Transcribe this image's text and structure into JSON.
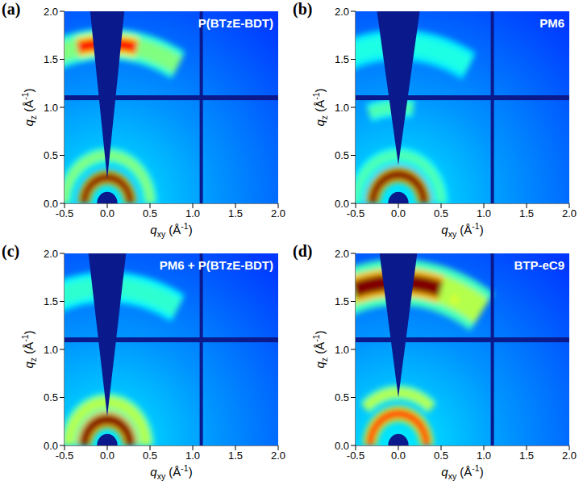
{
  "chart_data": [
    {
      "type": "heatmap",
      "panel_label": "(a)",
      "title": "P(BTzE-BDT)",
      "x_label": {
        "symbol": "q",
        "subscript": "xy",
        "unit_open": " (Å",
        "exponent": "-1",
        "unit_close": ")"
      },
      "y_label": {
        "symbol": "q",
        "subscript": "z",
        "unit_open": " (Å",
        "exponent": "-1",
        "unit_close": ")"
      },
      "xlim": [
        -0.5,
        2.0
      ],
      "ylim": [
        0,
        2.0
      ],
      "xticks": [
        -0.5,
        {
          "value": 0,
          "label": "0.0"
        },
        0.5,
        {
          "value": 1,
          "label": "1.0"
        },
        1.5,
        {
          "value": 2,
          "label": "2.0"
        }
      ],
      "yticks": [
        {
          "value": 0,
          "label": "0.0"
        },
        0.5,
        {
          "value": 1,
          "label": "1.0"
        },
        1.5,
        {
          "value": 2,
          "label": "2.0"
        }
      ],
      "beam_center": [
        0,
        0
      ],
      "beamstop_radius": 0.12,
      "missing_wedge": {
        "qz_apex": 0.25,
        "half_width_top": 0.2
      },
      "detector_gaps": {
        "qz": 1.1,
        "qxy": 1.1
      },
      "features": [
        {
          "shape": "arc",
          "q": 0.27,
          "width": 0.09,
          "angles": [
            0,
            180
          ],
          "intensity": 1.0
        },
        {
          "shape": "arc",
          "q": 0.5,
          "width": 0.1,
          "angles": [
            0,
            180
          ],
          "intensity": 0.5
        },
        {
          "shape": "arc",
          "q": 1.66,
          "width": 0.2,
          "angles": [
            60,
            120
          ],
          "intensity": 0.5
        },
        {
          "shape": "arc",
          "q": 1.66,
          "width": 0.14,
          "angles": [
            78,
            102
          ],
          "intensity": 0.85
        }
      ]
    },
    {
      "type": "heatmap",
      "panel_label": "(b)",
      "title": "PM6",
      "x_label": {
        "symbol": "q",
        "subscript": "xy",
        "unit_open": " (Å",
        "exponent": "-1",
        "unit_close": ")"
      },
      "y_label": {
        "symbol": "q",
        "subscript": "z",
        "unit_open": " (Å",
        "exponent": "-1",
        "unit_close": ")"
      },
      "xlim": [
        -0.5,
        2.0
      ],
      "ylim": [
        0,
        2.0
      ],
      "xticks": [
        -0.5,
        {
          "value": 0,
          "label": "0.0"
        },
        0.5,
        {
          "value": 1,
          "label": "1.0"
        },
        1.5,
        {
          "value": 2,
          "label": "2.0"
        }
      ],
      "yticks": [
        {
          "value": 0,
          "label": "0.0"
        },
        0.5,
        {
          "value": 1,
          "label": "1.0"
        },
        1.5,
        {
          "value": 2,
          "label": "2.0"
        }
      ],
      "beam_center": [
        0,
        0
      ],
      "beamstop_radius": 0.12,
      "missing_wedge": {
        "qz_apex": 0.4,
        "half_width_top": 0.25
      },
      "detector_gaps": {
        "qz": 1.1,
        "qxy": 1.1
      },
      "features": [
        {
          "shape": "arc",
          "q": 0.3,
          "width": 0.1,
          "angles": [
            0,
            180
          ],
          "intensity": 1.0
        },
        {
          "shape": "arc",
          "q": 0.5,
          "width": 0.1,
          "angles": [
            0,
            180
          ],
          "intensity": 0.45
        },
        {
          "shape": "arc",
          "q": 1.0,
          "width": 0.12,
          "angles": [
            80,
            110
          ],
          "intensity": 0.45
        },
        {
          "shape": "arc",
          "q": 1.65,
          "width": 0.2,
          "angles": [
            60,
            130
          ],
          "intensity": 0.4
        }
      ]
    },
    {
      "type": "heatmap",
      "panel_label": "(c)",
      "title": "PM6 + P(BTzE-BDT)",
      "x_label": {
        "symbol": "q",
        "subscript": "xy",
        "unit_open": " (Å",
        "exponent": "-1",
        "unit_close": ")"
      },
      "y_label": {
        "symbol": "q",
        "subscript": "z",
        "unit_open": " (Å",
        "exponent": "-1",
        "unit_close": ")"
      },
      "xlim": [
        -0.5,
        2.0
      ],
      "ylim": [
        0,
        2.0
      ],
      "xticks": [
        -0.5,
        {
          "value": 0,
          "label": "0.0"
        },
        0.5,
        {
          "value": 1,
          "label": "1.0"
        },
        1.5,
        {
          "value": 2,
          "label": "2.0"
        }
      ],
      "yticks": [
        {
          "value": 0,
          "label": "0.0"
        },
        0.5,
        {
          "value": 1,
          "label": "1.0"
        },
        1.5,
        {
          "value": 2,
          "label": "2.0"
        }
      ],
      "beam_center": [
        0,
        0
      ],
      "beamstop_radius": 0.12,
      "missing_wedge": {
        "qz_apex": 0.3,
        "half_width_top": 0.22
      },
      "detector_gaps": {
        "qz": 1.1,
        "qxy": 1.1
      },
      "features": [
        {
          "shape": "arc",
          "q": 0.27,
          "width": 0.11,
          "angles": [
            0,
            180
          ],
          "intensity": 1.0
        },
        {
          "shape": "arc",
          "q": 0.45,
          "width": 0.12,
          "angles": [
            0,
            180
          ],
          "intensity": 0.55
        },
        {
          "shape": "arc",
          "q": 1.65,
          "width": 0.2,
          "angles": [
            60,
            130
          ],
          "intensity": 0.42
        }
      ]
    },
    {
      "type": "heatmap",
      "panel_label": "(d)",
      "title": "BTP-eC9",
      "x_label": {
        "symbol": "q",
        "subscript": "xy",
        "unit_open": " (Å",
        "exponent": "-1",
        "unit_close": ")"
      },
      "y_label": {
        "symbol": "q",
        "subscript": "z",
        "unit_open": " (Å",
        "exponent": "-1",
        "unit_close": ")"
      },
      "xlim": [
        -0.5,
        2.0
      ],
      "ylim": [
        0,
        2.0
      ],
      "xticks": [
        -0.5,
        {
          "value": 0,
          "label": "0.0"
        },
        0.5,
        {
          "value": 1,
          "label": "1.0"
        },
        1.5,
        {
          "value": 2,
          "label": "2.0"
        }
      ],
      "yticks": [
        {
          "value": 0,
          "label": "0.0"
        },
        0.5,
        {
          "value": 1,
          "label": "1.0"
        },
        1.5,
        {
          "value": 2,
          "label": "2.0"
        }
      ],
      "beam_center": [
        0,
        0
      ],
      "beamstop_radius": 0.12,
      "missing_wedge": {
        "qz_apex": 0.5,
        "half_width_top": 0.22
      },
      "detector_gaps": {
        "qz": 1.1,
        "qxy": 1.1
      },
      "features": [
        {
          "shape": "arc",
          "q": 0.33,
          "width": 0.1,
          "angles": [
            0,
            180
          ],
          "intensity": 0.8
        },
        {
          "shape": "arc",
          "q": 0.55,
          "width": 0.1,
          "angles": [
            45,
            135
          ],
          "intensity": 0.55
        },
        {
          "shape": "arc",
          "q": 1.7,
          "width": 0.3,
          "angles": [
            55,
            125
          ],
          "intensity": 0.55
        },
        {
          "shape": "arc",
          "q": 1.7,
          "width": 0.18,
          "angles": [
            73,
            108
          ],
          "intensity": 1.0
        },
        {
          "shape": "spot",
          "qxy": 0.66,
          "qz": 1.52,
          "size": 0.04,
          "intensity": 0.6
        }
      ]
    }
  ]
}
